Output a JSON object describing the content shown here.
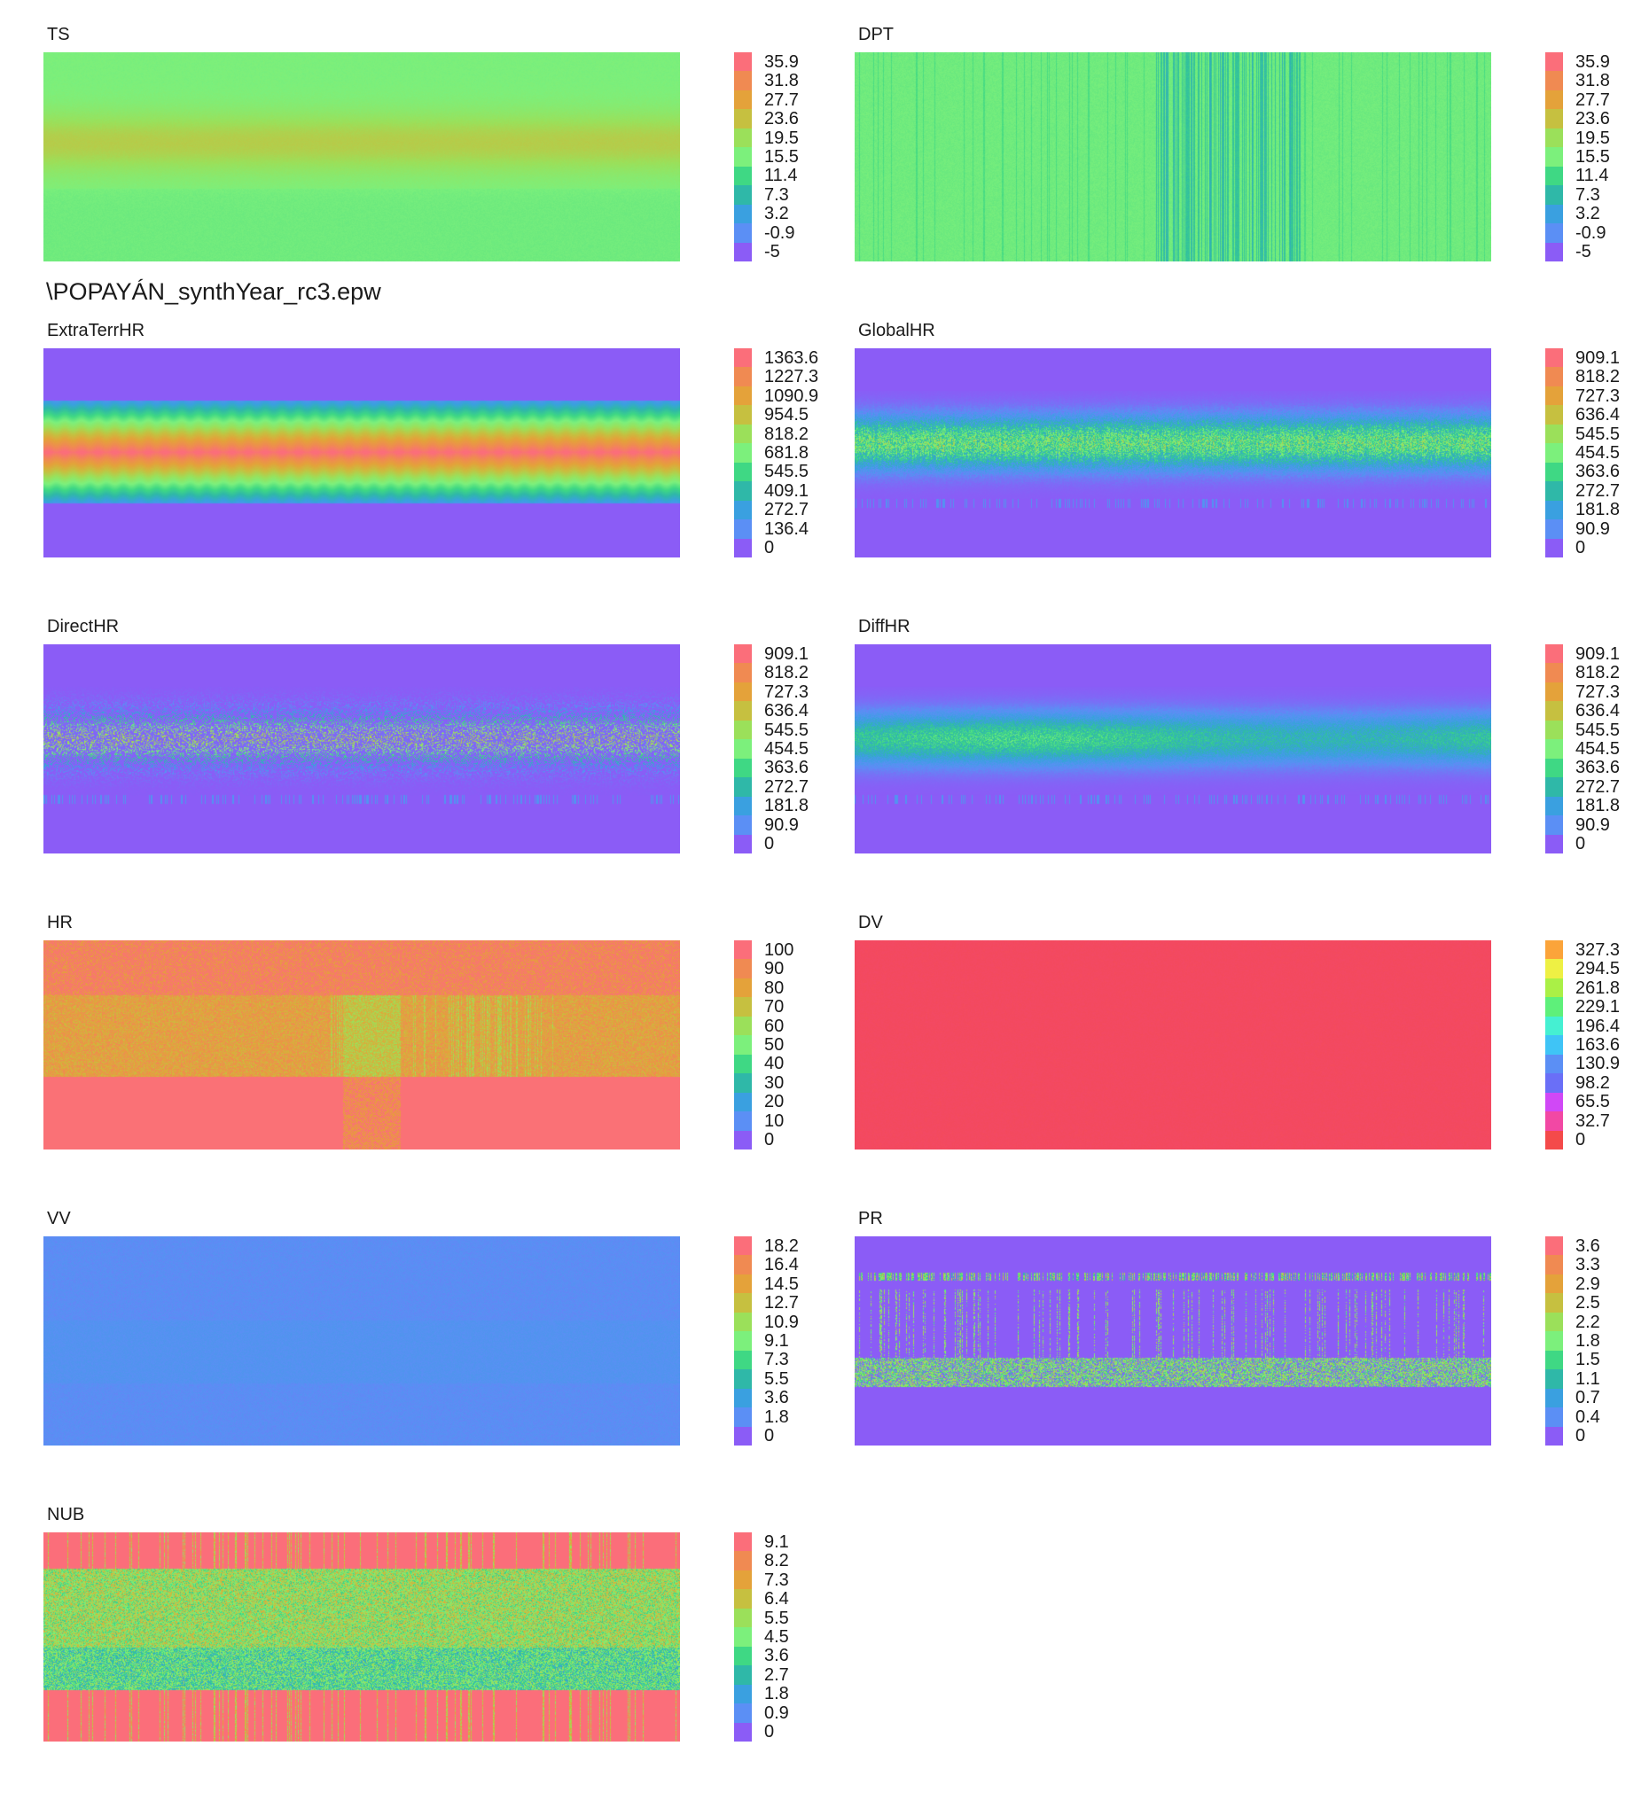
{
  "filename": "\\POPAYÁN_synthYear_rc3.epw",
  "palettes": {
    "rainbow11": [
      "#8b5cf6",
      "#5b8ff5",
      "#3aa0e0",
      "#2fb8a8",
      "#3fd884",
      "#7cf07c",
      "#9be05a",
      "#c6c040",
      "#e4a23a",
      "#f08a52",
      "#fb6e7a"
    ],
    "dv11": [
      "#f44a4a",
      "#f248a4",
      "#d048f6",
      "#6a6ff7",
      "#5b8ff5",
      "#3fc4f6",
      "#45f0d2",
      "#5ef07a",
      "#aaf046",
      "#eef044",
      "#fba43a"
    ]
  },
  "chart_data": [
    {
      "type": "heatmap",
      "title": "TS",
      "ticks": [
        "35.9",
        "31.8",
        "27.7",
        "23.6",
        "19.5",
        "15.5",
        "11.4",
        "7.3",
        "3.2",
        "-0.9",
        "-5"
      ],
      "range": [
        -5,
        35.9
      ],
      "colorscale": "rainbow11",
      "pattern": "ts"
    },
    {
      "type": "heatmap",
      "title": "DPT",
      "ticks": [
        "35.9",
        "31.8",
        "27.7",
        "23.6",
        "19.5",
        "15.5",
        "11.4",
        "7.3",
        "3.2",
        "-0.9",
        "-5"
      ],
      "range": [
        -5,
        35.9
      ],
      "colorscale": "rainbow11",
      "pattern": "dpt"
    },
    {
      "type": "heatmap",
      "title": "ExtraTerrHR",
      "ticks": [
        "1363.6",
        "1227.3",
        "1090.9",
        "954.5",
        "818.2",
        "681.8",
        "545.5",
        "409.1",
        "272.7",
        "136.4",
        "0"
      ],
      "range": [
        0,
        1363.6
      ],
      "colorscale": "rainbow11",
      "pattern": "extra"
    },
    {
      "type": "heatmap",
      "title": "GlobalHR",
      "ticks": [
        "909.1",
        "818.2",
        "727.3",
        "636.4",
        "545.5",
        "454.5",
        "363.6",
        "272.7",
        "181.8",
        "90.9",
        "0"
      ],
      "range": [
        0,
        909.1
      ],
      "colorscale": "rainbow11",
      "pattern": "global"
    },
    {
      "type": "heatmap",
      "title": "DirectHR",
      "ticks": [
        "909.1",
        "818.2",
        "727.3",
        "636.4",
        "545.5",
        "454.5",
        "363.6",
        "272.7",
        "181.8",
        "90.9",
        "0"
      ],
      "range": [
        0,
        909.1
      ],
      "colorscale": "rainbow11",
      "pattern": "direct"
    },
    {
      "type": "heatmap",
      "title": "DiffHR",
      "ticks": [
        "909.1",
        "818.2",
        "727.3",
        "636.4",
        "545.5",
        "454.5",
        "363.6",
        "272.7",
        "181.8",
        "90.9",
        "0"
      ],
      "range": [
        0,
        909.1
      ],
      "colorscale": "rainbow11",
      "pattern": "diff"
    },
    {
      "type": "heatmap",
      "title": "HR",
      "ticks": [
        "100",
        "90",
        "80",
        "70",
        "60",
        "50",
        "40",
        "30",
        "20",
        "10",
        "0"
      ],
      "range": [
        0,
        100
      ],
      "colorscale": "rainbow11",
      "pattern": "hr"
    },
    {
      "type": "heatmap",
      "title": "DV",
      "ticks": [
        "327.3",
        "294.5",
        "261.8",
        "229.1",
        "196.4",
        "163.6",
        "130.9",
        "98.2",
        "65.5",
        "32.7",
        "0"
      ],
      "range": [
        0,
        327.3
      ],
      "colorscale": "dv11",
      "pattern": "dv"
    },
    {
      "type": "heatmap",
      "title": "VV",
      "ticks": [
        "18.2",
        "16.4",
        "14.5",
        "12.7",
        "10.9",
        "9.1",
        "7.3",
        "5.5",
        "3.6",
        "1.8",
        "0"
      ],
      "range": [
        0,
        18.2
      ],
      "colorscale": "rainbow11",
      "pattern": "vv"
    },
    {
      "type": "heatmap",
      "title": "PR",
      "ticks": [
        "3.6",
        "3.3",
        "2.9",
        "2.5",
        "2.2",
        "1.8",
        "1.5",
        "1.1",
        "0.7",
        "0.4",
        "0"
      ],
      "range": [
        0,
        3.6
      ],
      "colorscale": "rainbow11",
      "pattern": "pr"
    },
    {
      "type": "heatmap",
      "title": "NUB",
      "ticks": [
        "9.1",
        "8.2",
        "7.3",
        "6.4",
        "5.5",
        "4.5",
        "3.6",
        "2.7",
        "1.8",
        "0.9",
        "0"
      ],
      "range": [
        0,
        9.1
      ],
      "colorscale": "rainbow11",
      "pattern": "nub"
    }
  ]
}
